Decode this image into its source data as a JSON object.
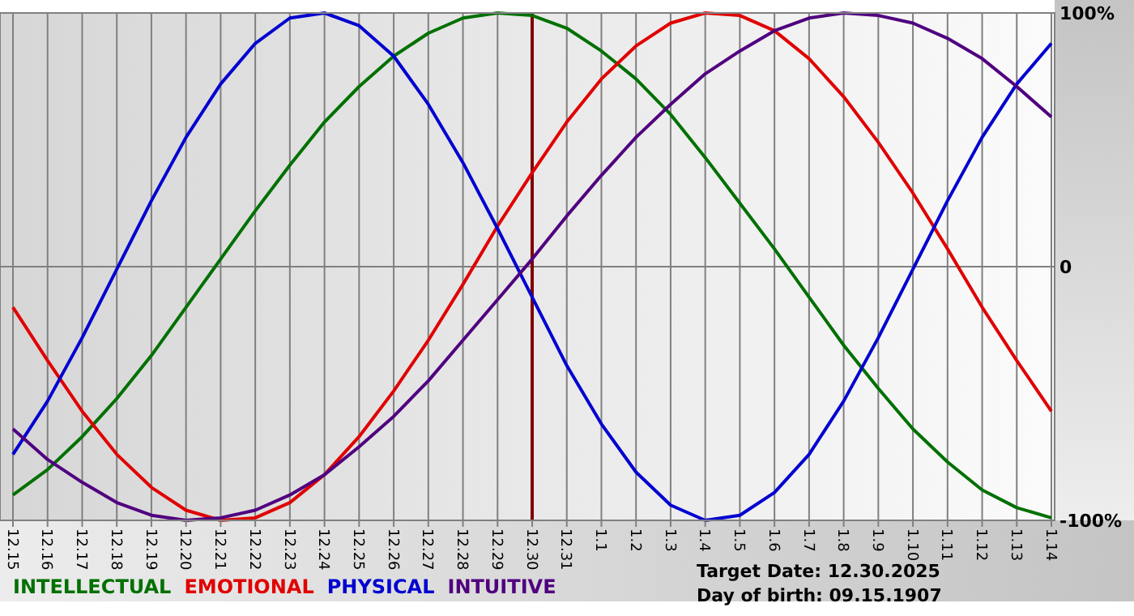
{
  "chart_data": {
    "type": "line",
    "categories": [
      "12.15",
      "12.16",
      "12.17",
      "12.18",
      "12.19",
      "12.20",
      "12.21",
      "12.22",
      "12.23",
      "12.24",
      "12.25",
      "12.26",
      "12.27",
      "12.28",
      "12.29",
      "12.30",
      "12.31",
      "1.1",
      "1.2",
      "1.3",
      "1.4",
      "1.5",
      "1.6",
      "1.7",
      "1.8",
      "1.9",
      "1.10",
      "1.11",
      "1.12",
      "1.13",
      "1.14"
    ],
    "series": [
      {
        "name": "INTELLECTUAL",
        "color": "#007000",
        "values": [
          -90,
          -80,
          -67,
          -52,
          -35,
          -16,
          3,
          22,
          40,
          57,
          71,
          83,
          92,
          98,
          100,
          99,
          94,
          85,
          74,
          60,
          43,
          25,
          7,
          -12,
          -31,
          -48,
          -64,
          -77,
          -88,
          -95,
          -99
        ]
      },
      {
        "name": "EMOTIONAL",
        "color": "#e00000",
        "values": [
          -16,
          -37,
          -57,
          -74,
          -87,
          -96,
          -100,
          -99,
          -93,
          -82,
          -67,
          -49,
          -29,
          -7,
          16,
          37,
          57,
          74,
          87,
          96,
          100,
          99,
          93,
          82,
          67,
          49,
          29,
          7,
          -16,
          -37,
          -57
        ]
      },
      {
        "name": "PHYSICAL",
        "color": "#0000d0",
        "values": [
          -74,
          -53,
          -28,
          -1,
          26,
          51,
          72,
          88,
          98,
          100,
          95,
          83,
          64,
          41,
          15,
          -12,
          -39,
          -62,
          -81,
          -94,
          -100,
          -98,
          -89,
          -74,
          -53,
          -28,
          -1,
          26,
          51,
          72,
          88
        ]
      },
      {
        "name": "INTUITIVE",
        "color": "#50007f",
        "values": [
          -64,
          -76,
          -85,
          -93,
          -98,
          -100,
          -99,
          -96,
          -90,
          -82,
          -71,
          -59,
          -45,
          -29,
          -13,
          3,
          20,
          36,
          51,
          64,
          76,
          85,
          93,
          98,
          100,
          99,
          96,
          90,
          82,
          71,
          59
        ]
      }
    ],
    "ylim": [
      -100,
      100
    ],
    "yticks": [
      {
        "value": 100,
        "label": "100%"
      },
      0,
      {
        "value": -100,
        "label": "-100%"
      }
    ],
    "grid": true,
    "legend": "bottom",
    "ref_lines": [
      {
        "axis": "x",
        "value": "12.30",
        "color": "#800000"
      }
    ],
    "annotations": [
      "Target Date: 12.30.2025",
      "Day of birth: 09.15.1907"
    ]
  }
}
